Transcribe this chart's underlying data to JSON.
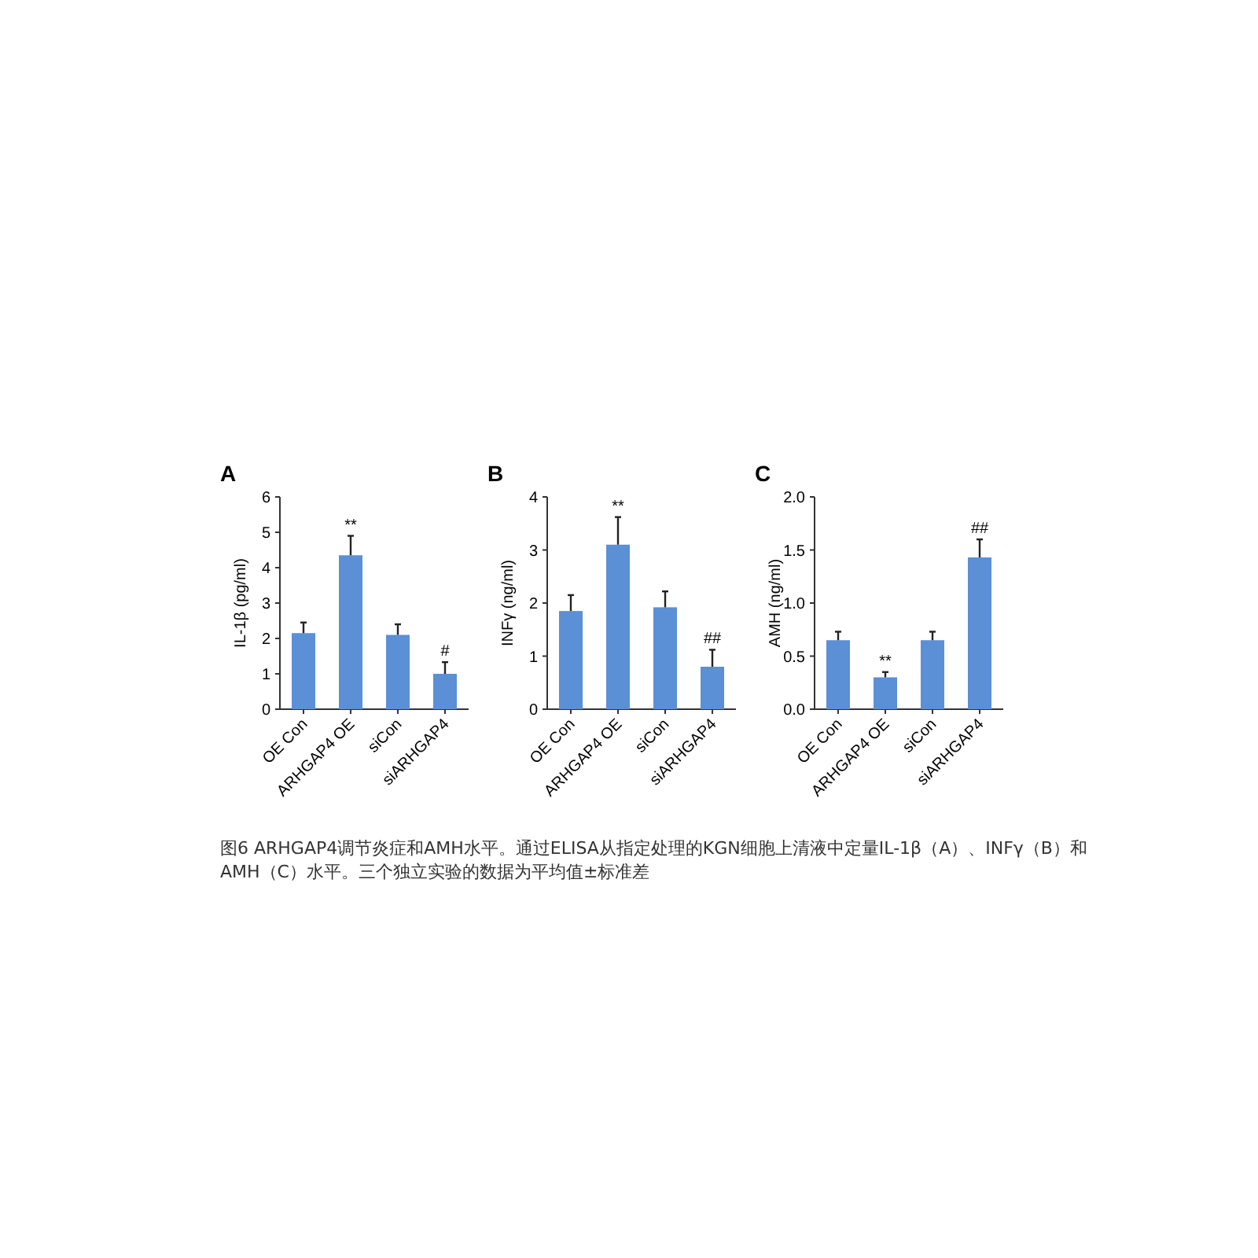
{
  "chart_data": [
    {
      "type": "bar",
      "title": "A",
      "ylabel": "IL-1β (pg/ml)",
      "categories": [
        "OE Con",
        "ARHGAP4 OE",
        "siCon",
        "siARHGAP4"
      ],
      "values": [
        2.15,
        4.35,
        2.1,
        1.0
      ],
      "errors": [
        [
          2.15,
          2.45
        ],
        [
          4.35,
          4.9
        ],
        [
          2.1,
          2.4
        ],
        [
          1.0,
          1.33
        ]
      ],
      "color": "#5b8fd6",
      "ylim": [
        0,
        6
      ],
      "yticks": [
        0,
        1,
        2,
        3,
        4,
        5,
        6
      ],
      "annotations": [
        {
          "text": "**",
          "x": "ARHGAP4 OE",
          "y": 4.9
        },
        {
          "text": "#",
          "x": "siARHGAP4",
          "y": 1.33
        }
      ]
    },
    {
      "type": "bar",
      "title": "B",
      "ylabel": "INFγ (ng/ml)",
      "categories": [
        "OE Con",
        "ARHGAP4 OE",
        "siCon",
        "siARHGAP4"
      ],
      "values": [
        1.85,
        3.1,
        1.92,
        0.8
      ],
      "errors": [
        [
          1.85,
          2.15
        ],
        [
          3.1,
          3.62
        ],
        [
          1.92,
          2.22
        ],
        [
          0.8,
          1.12
        ]
      ],
      "color": "#5b8fd6",
      "ylim": [
        0,
        4
      ],
      "yticks": [
        0,
        1,
        2,
        3,
        4
      ],
      "annotations": [
        {
          "text": "**",
          "x": "ARHGAP4 OE",
          "y": 3.62
        },
        {
          "text": "##",
          "x": "siARHGAP4",
          "y": 1.12
        }
      ]
    },
    {
      "type": "bar",
      "title": "C",
      "ylabel": "AMH (ng/ml)",
      "categories": [
        "OE Con",
        "ARHGAP4 OE",
        "siCon",
        "siARHGAP4"
      ],
      "values": [
        0.65,
        0.3,
        0.65,
        1.43
      ],
      "errors": [
        [
          0.65,
          0.73
        ],
        [
          0.3,
          0.35
        ],
        [
          0.65,
          0.73
        ],
        [
          1.43,
          1.6
        ]
      ],
      "color": "#5b8fd6",
      "ylim": [
        0,
        2.0
      ],
      "yticks": [
        {
          "value": 0,
          "label": "0.0"
        },
        {
          "value": 0.5,
          "label": "0.5"
        },
        {
          "value": 1.0,
          "label": "1.0"
        },
        {
          "value": 1.5,
          "label": "1.5"
        },
        {
          "value": 2.0,
          "label": "2.0"
        }
      ],
      "annotations": [
        {
          "text": "**",
          "x": "ARHGAP4 OE",
          "y": 0.35
        },
        {
          "text": "##",
          "x": "siARHGAP4",
          "y": 1.6
        },
        "图6 ARHGAP4调节炎症和AMH水平。通过ELISA从指定处理的KGN细胞上清液中定量IL-1β（A）、INFγ（B）和AMH（C）水平。三个独立实验的数据为平均值±标准差"
      ]
    }
  ]
}
